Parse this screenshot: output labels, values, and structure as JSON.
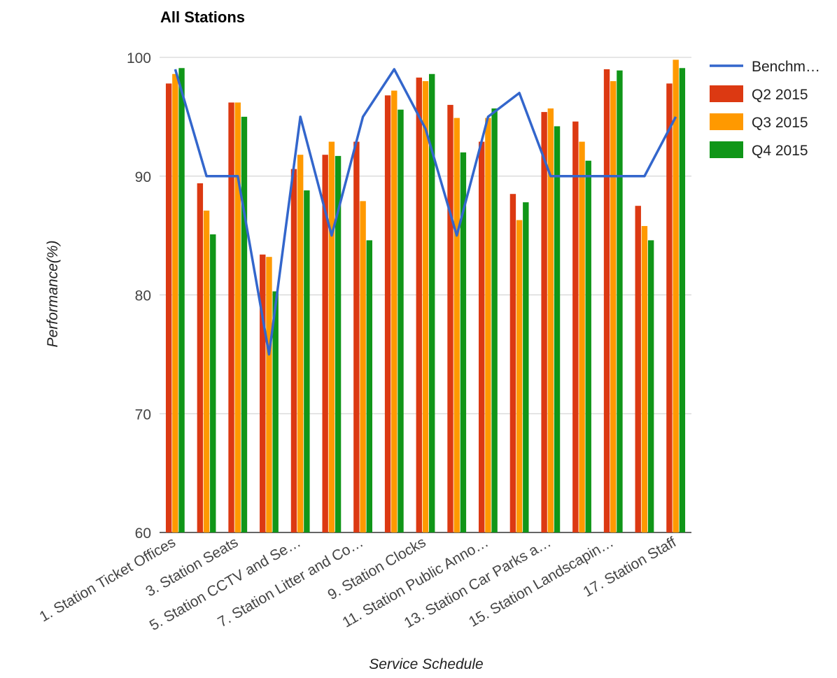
{
  "chart_data": {
    "type": "bar",
    "title": "All Stations",
    "xlabel": "Service Schedule",
    "ylabel": "Performance(%)",
    "ylim": [
      60,
      100
    ],
    "yticks": [
      "60",
      "70",
      "80",
      "90",
      "100"
    ],
    "grid": true,
    "legend_position": "right",
    "categories": [
      "1. Station Ticket Offices",
      "",
      "3. Station Seats",
      "",
      "5. Station CCTV and Se…",
      "",
      "7. Station Litter and Co…",
      "",
      "9. Station Clocks",
      "",
      "11. Station Public Anno…",
      "",
      "13. Station Car Parks a…",
      "",
      "15. Station Landscapin…",
      "",
      "17. Station Staff"
    ],
    "line_series": {
      "name": "Benchm…",
      "color": "#3366cc",
      "values": [
        99,
        90,
        90,
        75,
        95,
        85,
        95,
        99,
        94,
        85,
        95,
        97,
        90,
        90,
        90,
        90,
        95
      ]
    },
    "series": [
      {
        "name": "Q2 2015",
        "color": "#dc3912",
        "values": [
          97.8,
          89.4,
          96.2,
          83.4,
          90.6,
          91.8,
          92.9,
          96.8,
          98.3,
          96.0,
          92.9,
          88.5,
          95.4,
          94.6,
          99.0,
          87.5,
          97.8
        ]
      },
      {
        "name": "Q3 2015",
        "color": "#ff9900",
        "values": [
          98.6,
          87.1,
          96.2,
          83.2,
          91.8,
          92.9,
          87.9,
          97.2,
          98.0,
          94.9,
          94.9,
          86.3,
          95.7,
          92.9,
          98.0,
          85.8,
          99.8
        ]
      },
      {
        "name": "Q4 2015",
        "color": "#109618",
        "values": [
          99.1,
          85.1,
          95.0,
          80.3,
          88.8,
          91.7,
          84.6,
          95.6,
          98.6,
          92.0,
          95.7,
          87.8,
          94.2,
          91.3,
          98.9,
          84.6,
          99.1
        ]
      }
    ]
  }
}
